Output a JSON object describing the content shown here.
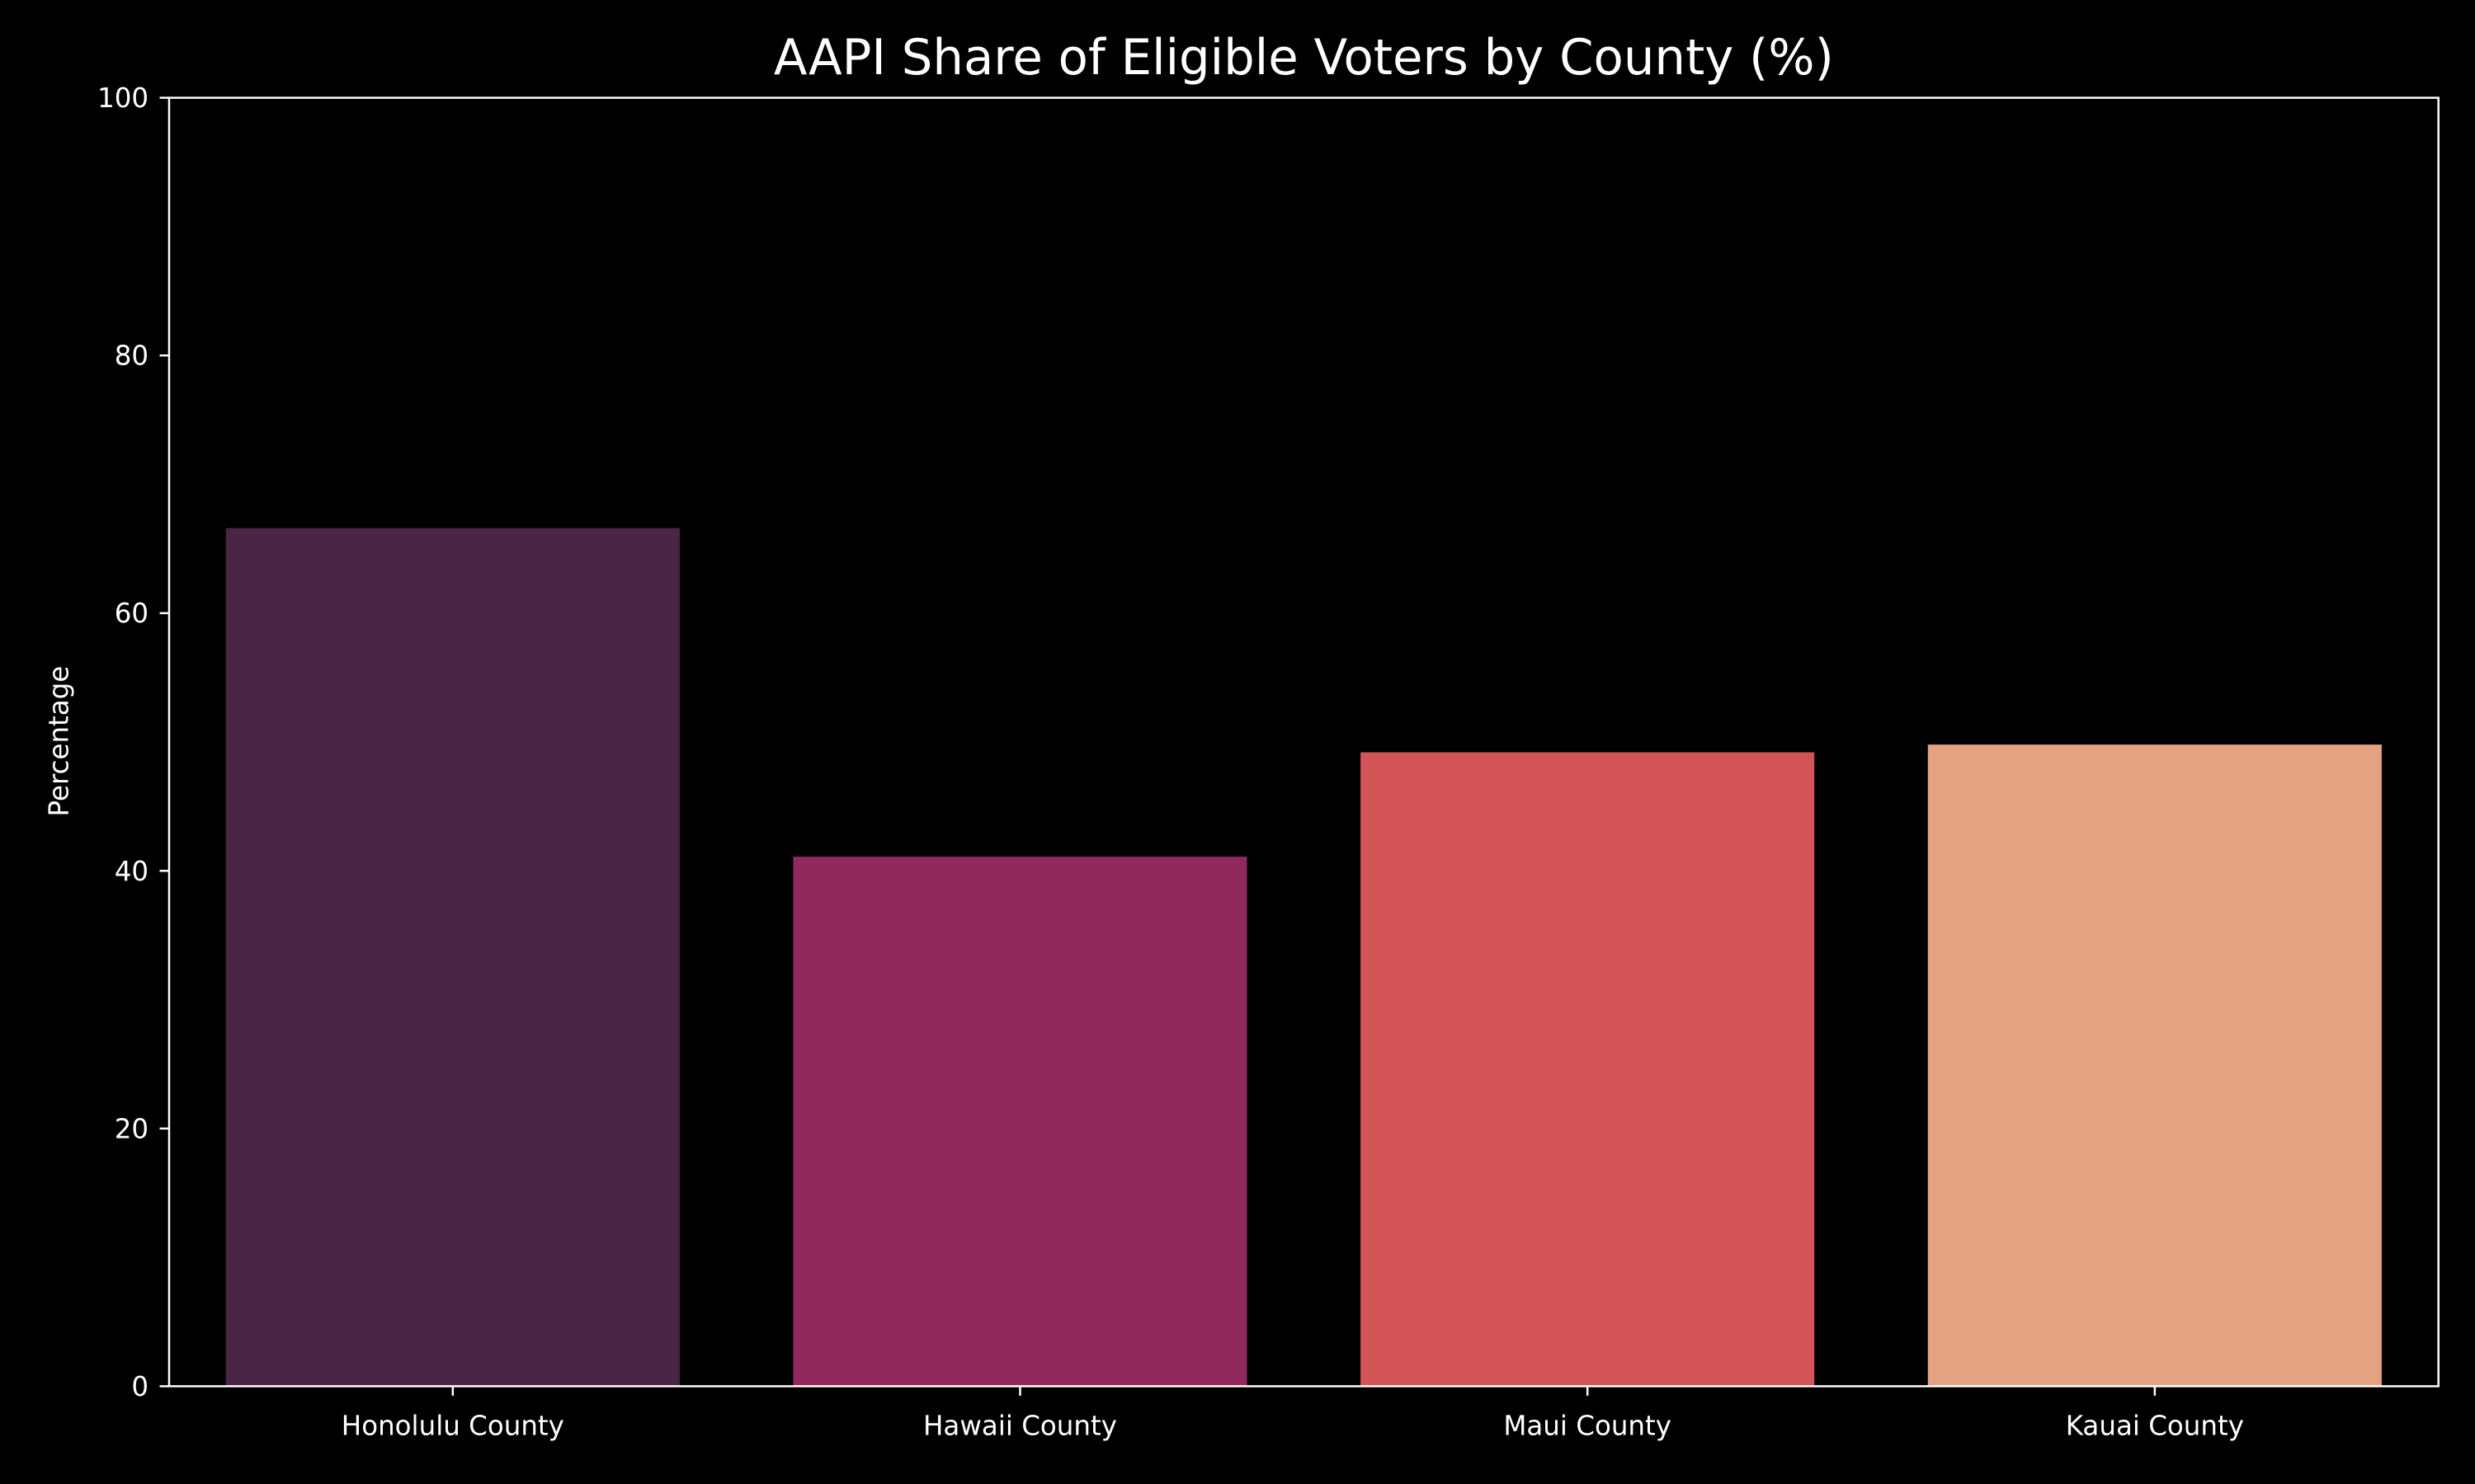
{
  "chart_data": {
    "type": "bar",
    "title": "AAPI Share of Eligible Voters by County (%)",
    "xlabel": "",
    "ylabel": "Percentage",
    "categories": [
      "Honolulu County",
      "Hawaii County",
      "Maui County",
      "Kauai County"
    ],
    "values": [
      66.6,
      41.1,
      49.2,
      49.8
    ],
    "colors": [
      "#4a2546",
      "#902a5c",
      "#d25457",
      "#e4a283"
    ],
    "ylim": [
      0,
      100
    ],
    "yticks": [
      0,
      20,
      40,
      60,
      80,
      100
    ],
    "grid": false,
    "background": "#000000"
  }
}
